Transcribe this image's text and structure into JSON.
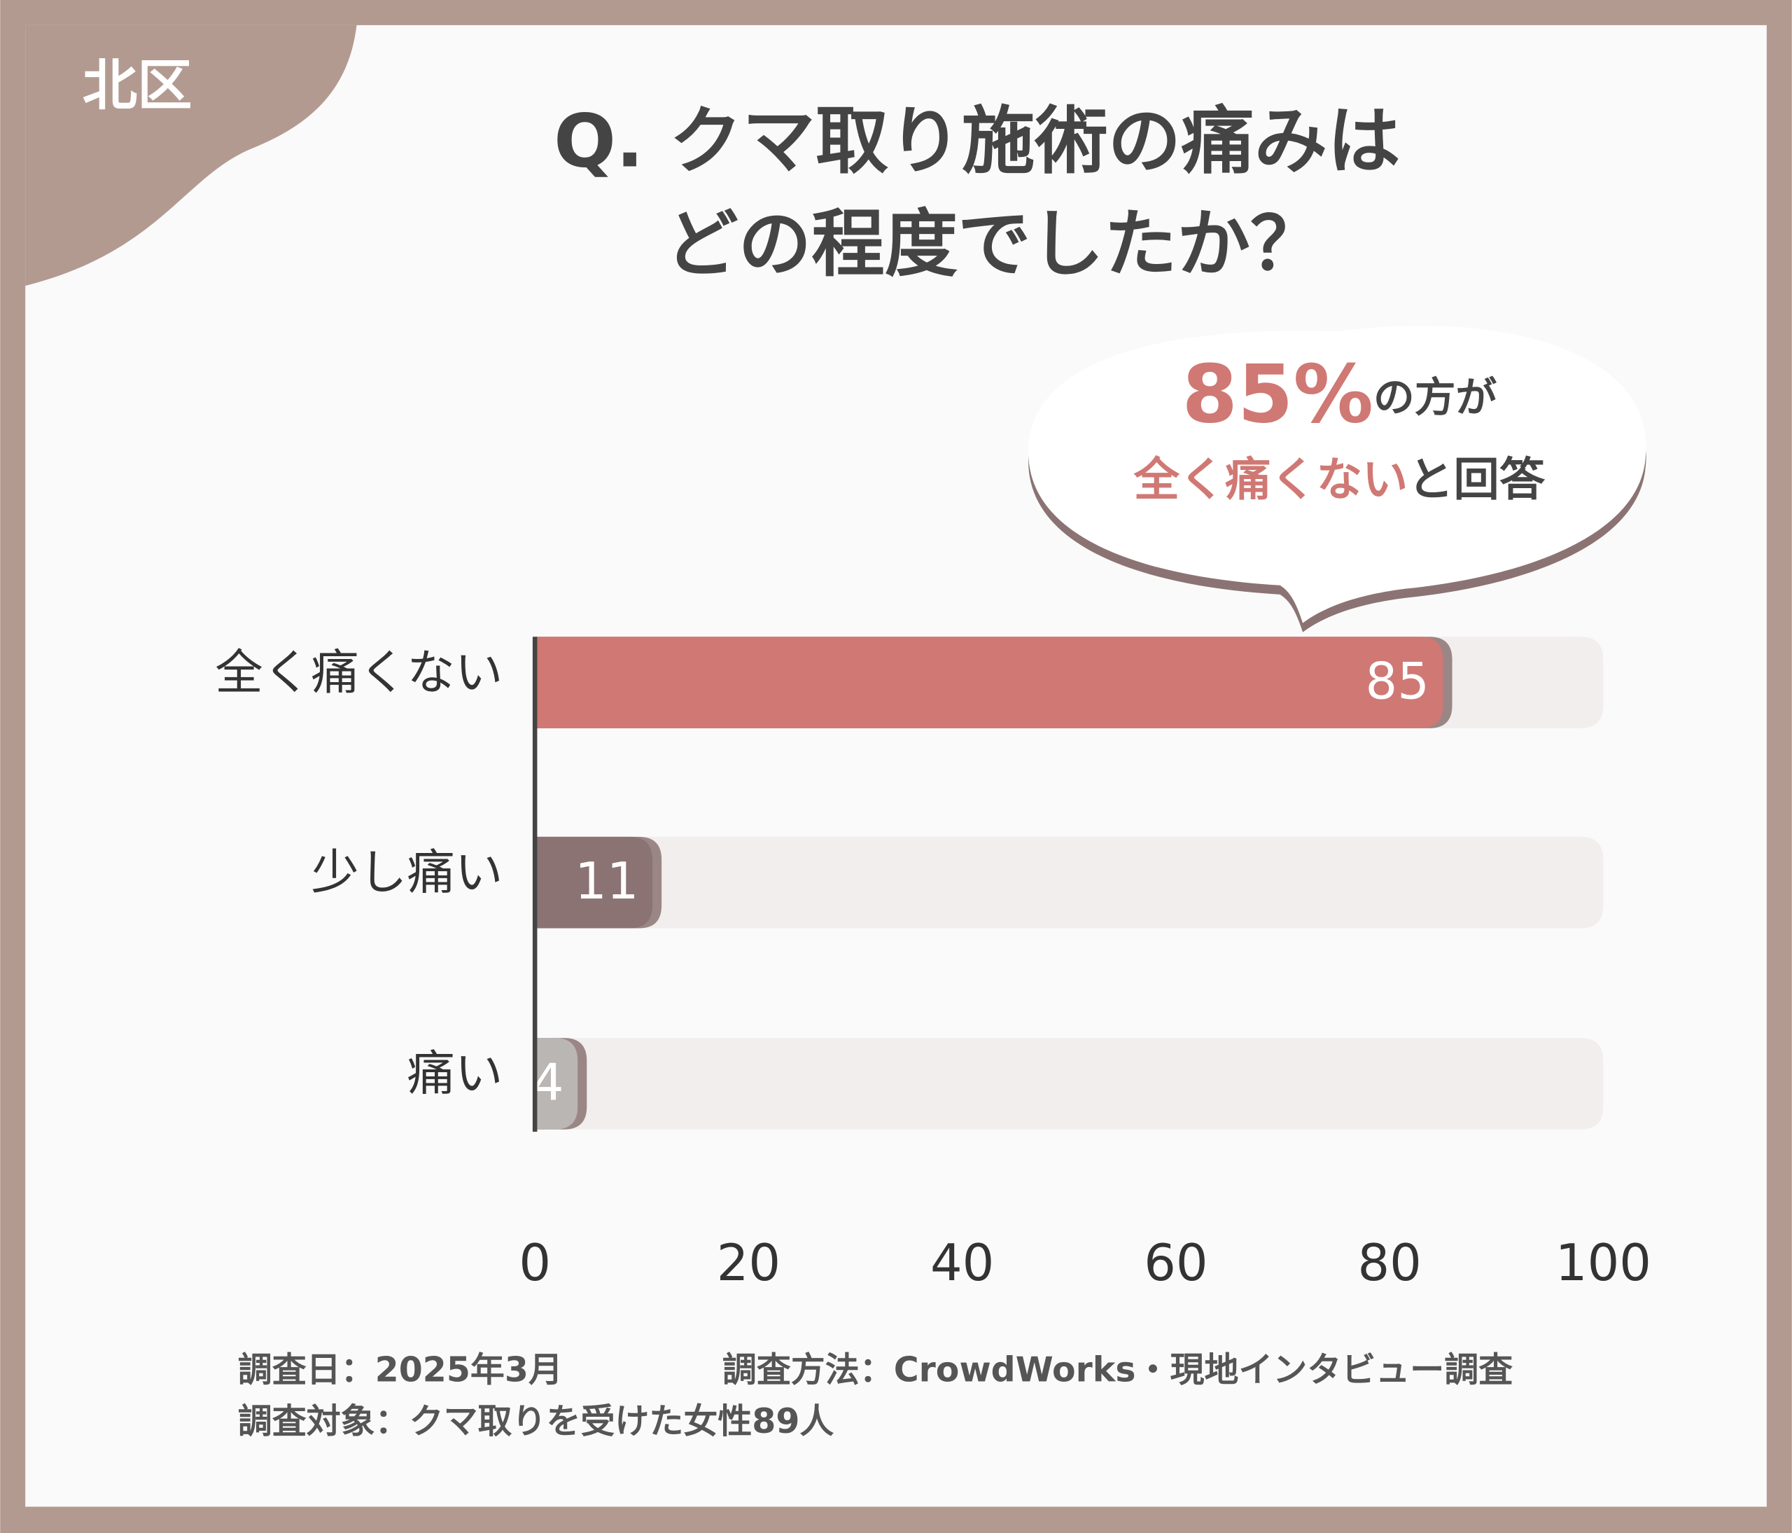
{
  "badge": "北区",
  "chart_data": {
    "type": "barh",
    "title": [
      "Q. クマ取り施術の痛みは",
      "どの程度でしたか？"
    ],
    "annotation": [
      [
        "85%",
        "の方が"
      ],
      [
        "全く痛くない",
        "と回答"
      ]
    ],
    "categories": [
      "全く痛くない",
      "少し痛い",
      "痛い"
    ],
    "values": [
      85,
      11,
      4
    ],
    "colors": [
      "#d07874",
      "#8c7373",
      "#bab6b4"
    ],
    "xlim": [
      0,
      100
    ],
    "xticks": [
      0,
      20,
      40,
      60,
      80,
      100
    ],
    "grid": false
  },
  "footnotes": [
    "調査日：2025年3月",
    "調査方法：CrowdWorks・現地インタビュー調査",
    "調査対象：クマ取りを受けた女性89人"
  ]
}
